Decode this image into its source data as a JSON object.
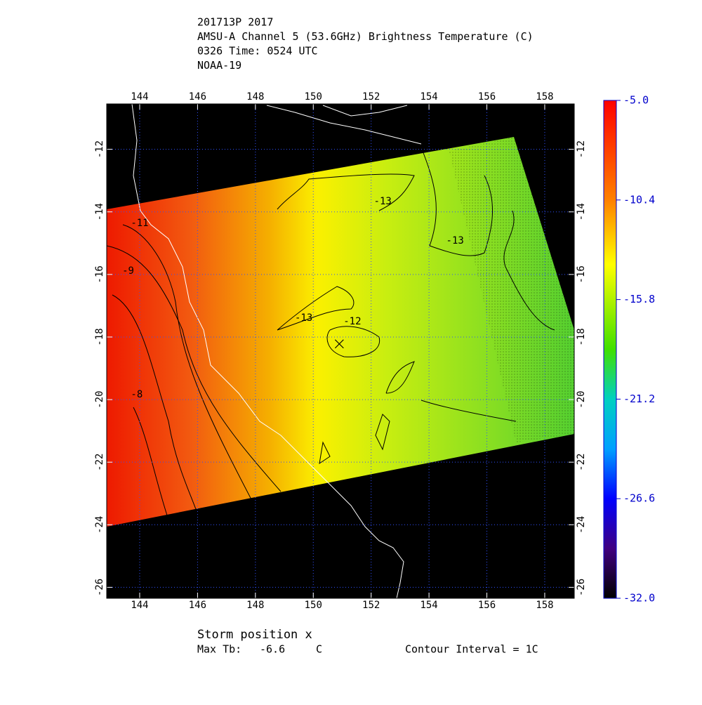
{
  "chart_data": {
    "type": "map",
    "title_lines": [
      "201713P 2017",
      "AMSU-A Channel 5 (53.6GHz) Brightness Temperature (C)",
      "0326 Time: 0524 UTC",
      "NOAA-19"
    ],
    "xlim": [
      142.86,
      159.02
    ],
    "xticks": [
      144,
      146,
      148,
      150,
      152,
      154,
      156,
      158
    ],
    "ylim": [
      -26.35,
      -10.55
    ],
    "yticks": [
      -12,
      -14,
      -16,
      -18,
      -20,
      -22,
      -24,
      -26
    ],
    "grid": true,
    "contour_labels": [
      {
        "value": -11,
        "lon": 144.0,
        "lat": -14.37
      },
      {
        "value": -9,
        "lon": 143.6,
        "lat": -15.89
      },
      {
        "value": -8,
        "lon": 143.9,
        "lat": -19.84
      },
      {
        "value": -13,
        "lon": 149.67,
        "lat": -17.39
      },
      {
        "value": -12,
        "lon": 151.35,
        "lat": -17.51
      },
      {
        "value": -13,
        "lon": 152.4,
        "lat": -13.67
      },
      {
        "value": -13,
        "lon": 154.9,
        "lat": -14.93
      }
    ],
    "storm_position": {
      "lon": 150.9,
      "lat": -18.22
    },
    "colorbar": {
      "lim": [
        -32,
        -5
      ],
      "ticks": [
        {
          "value": -5,
          "label": "-5.0"
        },
        -10.4,
        -15.8,
        -21.2,
        -26.6,
        {
          "value": -32,
          "label": "-32.0"
        }
      ]
    },
    "footer": {
      "storm_label": "Storm position x",
      "max_tb_label": "Max Tb:",
      "max_tb": -6.6,
      "max_tb_unit": "C",
      "contour_interval": "Contour Interval = 1C"
    }
  }
}
